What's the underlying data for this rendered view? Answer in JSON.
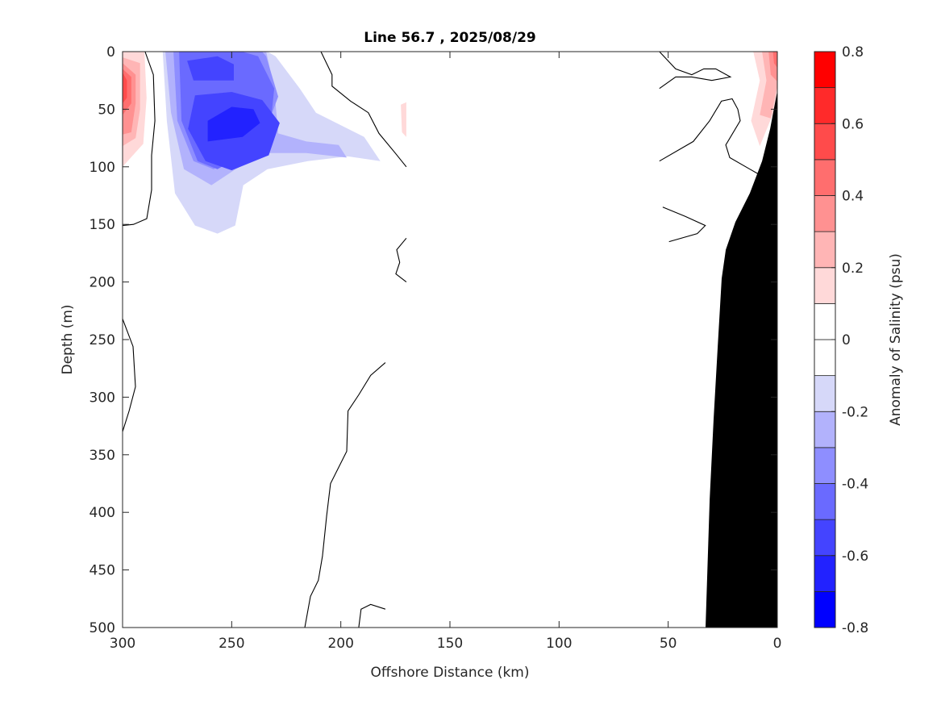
{
  "chart_data": {
    "type": "contour",
    "title": "Line 56.7 , 2025/08/29",
    "xlabel": "Offshore Distance (km)",
    "ylabel": "Depth (m)",
    "xlim": [
      300,
      0
    ],
    "ylim": [
      0,
      500
    ],
    "xticks": [
      300,
      250,
      200,
      150,
      100,
      50,
      0
    ],
    "yticks": [
      0,
      50,
      100,
      150,
      200,
      250,
      300,
      350,
      400,
      450,
      500
    ],
    "colorbar": {
      "label": "Anomaly of Salinity (psu)",
      "range": [
        -0.8,
        0.8
      ],
      "step": 0.1,
      "ticks": [
        "-0.8",
        "-0.6",
        "-0.4",
        "-0.2",
        "0",
        "0.2",
        "0.4",
        "0.6",
        "0.8"
      ],
      "band_colors": [
        "#0000ff",
        "#2222ff",
        "#4444ff",
        "#6a6aff",
        "#8e8eff",
        "#b2b2fc",
        "#d6d8f9",
        "#ffffff",
        "#ffffff",
        "#ffd9d9",
        "#ffb5b5",
        "#ff9191",
        "#ff6e6e",
        "#ff4b4b",
        "#ff2a2a",
        "#ff0000"
      ]
    },
    "filled_contours": [
      {
        "level": -0.1,
        "points": [
          [
            285.2,
            0
          ],
          [
            284.1,
            60
          ],
          [
            283,
            158
          ],
          [
            282.3,
            291
          ],
          [
            280.4,
            375
          ],
          [
            270.4,
            381
          ],
          [
            260.8,
            365
          ],
          [
            257.1,
            312
          ],
          [
            254.6,
            291
          ],
          [
            245.3,
            281
          ],
          [
            238.7,
            263
          ],
          [
            234.2,
            221
          ],
          [
            232.4,
            165
          ],
          [
            228.7,
            144
          ],
          [
            215.8,
            139
          ],
          [
            204.7,
            143
          ],
          [
            206.5,
            165
          ],
          [
            204.7,
            200
          ],
          [
            191.8,
            204
          ],
          [
            188.1,
            165
          ],
          [
            179.6,
            151
          ],
          [
            182.5,
            123
          ],
          [
            175.1,
            95
          ],
          [
            182.5,
            74
          ],
          [
            204.7,
            39
          ],
          [
            226.9,
            0
          ]
        ]
      },
      {
        "level": -0.1,
        "points": [
          [
            238,
            309
          ],
          [
            229,
            296
          ],
          [
            212.7,
            295
          ],
          [
            213.4,
            337
          ],
          [
            219.4,
            351
          ],
          [
            226.7,
            363
          ],
          [
            229.3,
            337
          ]
        ]
      },
      {
        "level": -0.1,
        "points": [
          [
            54,
            0
          ],
          [
            48,
            5
          ],
          [
            47,
            20
          ],
          [
            54,
            26
          ]
        ]
      },
      {
        "level": -0.1,
        "points": [
          [
            54,
            97
          ],
          [
            45,
            92
          ],
          [
            32,
            94
          ],
          [
            23,
            104
          ],
          [
            24,
            120
          ],
          [
            38,
            126
          ],
          [
            54,
            124
          ]
        ]
      },
      {
        "level": -0.1,
        "points": [
          [
            49.6,
            192
          ],
          [
            44,
            188
          ],
          [
            38,
            202
          ],
          [
            30,
            214
          ],
          [
            26,
            228
          ],
          [
            28,
            238
          ],
          [
            33,
            240
          ],
          [
            38,
            224
          ],
          [
            46,
            214
          ],
          [
            49.6,
            205
          ]
        ]
      },
      {
        "level": -0.2,
        "points": [
          [
            281.6,
            0
          ],
          [
            279.7,
            60
          ],
          [
            276,
            123
          ],
          [
            266.8,
            151
          ],
          [
            256.5,
            158
          ],
          [
            248.4,
            151
          ],
          [
            244.7,
            116
          ],
          [
            233.6,
            102
          ],
          [
            215.1,
            95
          ],
          [
            196.7,
            91
          ],
          [
            181.9,
            95
          ],
          [
            189.3,
            74
          ],
          [
            211.4,
            53
          ],
          [
            218.8,
            32
          ],
          [
            229.9,
            4
          ],
          [
            233.6,
            0
          ]
        ]
      },
      {
        "level": -0.3,
        "points": [
          [
            280.4,
            0
          ],
          [
            277.8,
            53
          ],
          [
            271.9,
            102
          ],
          [
            259.3,
            116
          ],
          [
            248.2,
            102
          ],
          [
            234.2,
            88
          ],
          [
            215.8,
            88
          ],
          [
            197.3,
            92
          ],
          [
            201,
            81
          ],
          [
            215.8,
            78
          ],
          [
            228.7,
            71
          ],
          [
            230.5,
            32
          ],
          [
            234.2,
            0
          ]
        ]
      },
      {
        "level": -0.4,
        "points": [
          [
            276.7,
            0
          ],
          [
            274.9,
            60
          ],
          [
            267.5,
            95
          ],
          [
            258.3,
            102
          ],
          [
            245.3,
            88
          ],
          [
            234.2,
            67
          ],
          [
            228.7,
            39
          ],
          [
            234.2,
            4
          ],
          [
            236.1,
            0
          ]
        ]
      },
      {
        "level": -0.5,
        "points": [
          [
            274.1,
            0
          ],
          [
            273,
            60
          ],
          [
            265.6,
            95
          ],
          [
            256.5,
            102
          ],
          [
            243.5,
            88
          ],
          [
            232.4,
            67
          ],
          [
            230.5,
            32
          ],
          [
            237.9,
            4
          ],
          [
            245.3,
            0
          ]
        ]
      },
      {
        "level": -0.6,
        "points": [
          [
            270.4,
            8
          ],
          [
            267.5,
            25
          ],
          [
            249,
            25
          ],
          [
            249,
            11
          ],
          [
            256.5,
            4
          ]
        ]
      },
      {
        "level": -0.6,
        "points": [
          [
            266.8,
            38
          ],
          [
            270,
            67
          ],
          [
            262,
            95
          ],
          [
            250,
            103
          ],
          [
            233,
            90
          ],
          [
            228,
            62
          ],
          [
            236,
            42
          ],
          [
            250,
            35
          ]
        ]
      },
      {
        "level": -0.7,
        "points": [
          [
            261,
            60
          ],
          [
            261,
            78
          ],
          [
            245,
            74
          ],
          [
            237,
            62
          ],
          [
            240,
            50
          ],
          [
            250,
            48
          ]
        ]
      },
      {
        "level": 0.1,
        "points": [
          [
            300,
            0
          ],
          [
            288,
            0
          ],
          [
            286.5,
            30
          ],
          [
            287.5,
            70
          ],
          [
            287.5,
            123
          ],
          [
            300,
            123
          ]
        ]
      },
      {
        "level": 0.2,
        "points": [
          [
            300,
            0
          ],
          [
            290,
            0
          ],
          [
            289,
            40
          ],
          [
            290.5,
            80
          ],
          [
            300,
            100
          ]
        ]
      },
      {
        "level": 0.3,
        "points": [
          [
            300,
            5
          ],
          [
            292,
            10
          ],
          [
            292,
            50
          ],
          [
            294,
            75
          ],
          [
            300,
            82
          ]
        ]
      },
      {
        "level": 0.4,
        "points": [
          [
            300,
            10
          ],
          [
            294,
            20
          ],
          [
            294,
            45
          ],
          [
            296,
            70
          ],
          [
            300,
            72
          ]
        ]
      },
      {
        "level": 0.5,
        "points": [
          [
            300,
            15
          ],
          [
            296,
            22
          ],
          [
            296,
            45
          ],
          [
            300,
            55
          ]
        ]
      },
      {
        "level": 0.6,
        "points": [
          [
            300,
            18
          ],
          [
            298,
            25
          ],
          [
            298,
            40
          ],
          [
            300,
            45
          ]
        ]
      },
      {
        "level": 0.1,
        "points": [
          [
            194,
            28
          ],
          [
            185,
            14
          ],
          [
            170,
            11
          ],
          [
            170,
            88
          ],
          [
            176,
            88
          ],
          [
            178,
            65
          ],
          [
            182,
            48
          ],
          [
            192,
            40
          ]
        ]
      },
      {
        "level": 0.2,
        "points": [
          [
            172.5,
            46
          ],
          [
            170,
            44
          ],
          [
            170,
            74
          ],
          [
            172,
            70
          ]
        ]
      },
      {
        "level": 0.1,
        "points": [
          [
            181,
            302
          ],
          [
            179.6,
            300
          ],
          [
            179.6,
            330
          ],
          [
            181,
            318
          ]
        ]
      },
      {
        "level": 0.1,
        "points": [
          [
            190,
            372
          ],
          [
            183,
            355
          ],
          [
            179.6,
            352
          ],
          [
            179.6,
            386
          ],
          [
            186,
            380
          ]
        ]
      },
      {
        "level": 0.1,
        "points": [
          [
            54,
            36
          ],
          [
            44,
            36
          ],
          [
            38,
            39
          ],
          [
            44,
            43
          ],
          [
            54,
            43
          ]
        ]
      },
      {
        "level": 0.1,
        "points": [
          [
            54,
            58
          ],
          [
            46,
            58
          ],
          [
            44,
            64
          ],
          [
            48,
            74
          ],
          [
            54,
            74
          ]
        ]
      },
      {
        "level": 0.1,
        "points": [
          [
            14,
            0
          ],
          [
            11,
            25
          ],
          [
            16,
            60
          ],
          [
            12,
            90
          ],
          [
            5,
            94
          ],
          [
            0,
            60
          ],
          [
            0,
            0
          ]
        ]
      },
      {
        "level": 0.2,
        "points": [
          [
            11,
            0
          ],
          [
            8,
            25
          ],
          [
            12,
            60
          ],
          [
            8,
            82
          ],
          [
            0,
            45
          ],
          [
            0,
            0
          ]
        ]
      },
      {
        "level": 0.3,
        "points": [
          [
            7,
            0
          ],
          [
            5,
            25
          ],
          [
            8,
            55
          ],
          [
            3,
            58
          ],
          [
            0,
            30
          ],
          [
            0,
            0
          ]
        ]
      },
      {
        "level": 0.4,
        "points": [
          [
            4,
            0
          ],
          [
            3,
            20
          ],
          [
            0,
            26
          ],
          [
            0,
            0
          ]
        ]
      },
      {
        "level": 0.5,
        "points": [
          [
            2,
            0
          ],
          [
            1.5,
            10
          ],
          [
            0,
            14
          ],
          [
            0,
            0
          ]
        ]
      }
    ],
    "zero_contour_lines": [
      [
        [
          289.7,
          0
        ],
        [
          285.9,
          20
        ],
        [
          285.2,
          60
        ],
        [
          286.7,
          90
        ],
        [
          286.7,
          120
        ],
        [
          288.9,
          145
        ],
        [
          295,
          150
        ],
        [
          300,
          151
        ]
      ],
      [
        [
          300,
          232
        ],
        [
          295.2,
          256
        ],
        [
          294.1,
          291
        ],
        [
          297,
          312
        ],
        [
          300,
          330
        ]
      ],
      [
        [
          209.1,
          0
        ],
        [
          204,
          20
        ],
        [
          204,
          30
        ],
        [
          195.5,
          43
        ],
        [
          187.4,
          53
        ],
        [
          182.5,
          71
        ],
        [
          175.1,
          88
        ],
        [
          170,
          100
        ]
      ],
      [
        [
          170,
          162
        ],
        [
          174.4,
          172
        ],
        [
          173,
          183
        ],
        [
          174.8,
          193
        ],
        [
          170,
          200
        ]
      ],
      [
        [
          179.6,
          270
        ],
        [
          186.3,
          281
        ],
        [
          191.8,
          298
        ],
        [
          196.7,
          312
        ],
        [
          197.3,
          347
        ],
        [
          204.7,
          375
        ],
        [
          206.5,
          403
        ],
        [
          208.4,
          438
        ],
        [
          210.3,
          459
        ],
        [
          213.9,
          473
        ],
        [
          216.5,
          500
        ]
      ],
      [
        [
          191.8,
          500
        ],
        [
          190.7,
          484
        ],
        [
          186.3,
          480
        ],
        [
          179.6,
          484
        ]
      ],
      [
        [
          54,
          0
        ],
        [
          46.6,
          15
        ],
        [
          39.2,
          20
        ],
        [
          33.7,
          15
        ],
        [
          28.2,
          15
        ],
        [
          21.5,
          22
        ],
        [
          30,
          25
        ],
        [
          39.2,
          22
        ],
        [
          46.6,
          22
        ],
        [
          54,
          32
        ]
      ],
      [
        [
          54,
          95
        ],
        [
          38.5,
          78
        ],
        [
          31,
          60
        ],
        [
          25.6,
          43
        ],
        [
          20.7,
          41
        ],
        [
          18.1,
          50
        ],
        [
          17,
          60
        ],
        [
          23.6,
          81
        ],
        [
          21.8,
          92
        ],
        [
          12.6,
          102
        ],
        [
          8.9,
          106
        ]
      ],
      [
        [
          52.5,
          135
        ],
        [
          42.2,
          143
        ],
        [
          33,
          151
        ],
        [
          36.7,
          158
        ],
        [
          49.6,
          165
        ]
      ]
    ],
    "bathymetry": [
      [
        0,
        34
      ],
      [
        3.3,
        67
      ],
      [
        7,
        95
      ],
      [
        12.6,
        123
      ],
      [
        19.2,
        148
      ],
      [
        23.6,
        172
      ],
      [
        25.5,
        197
      ],
      [
        27.3,
        256
      ],
      [
        29.2,
        319
      ],
      [
        31,
        389
      ],
      [
        32.9,
        500
      ],
      [
        0,
        500
      ]
    ],
    "bathymetry_color": "#000000"
  }
}
